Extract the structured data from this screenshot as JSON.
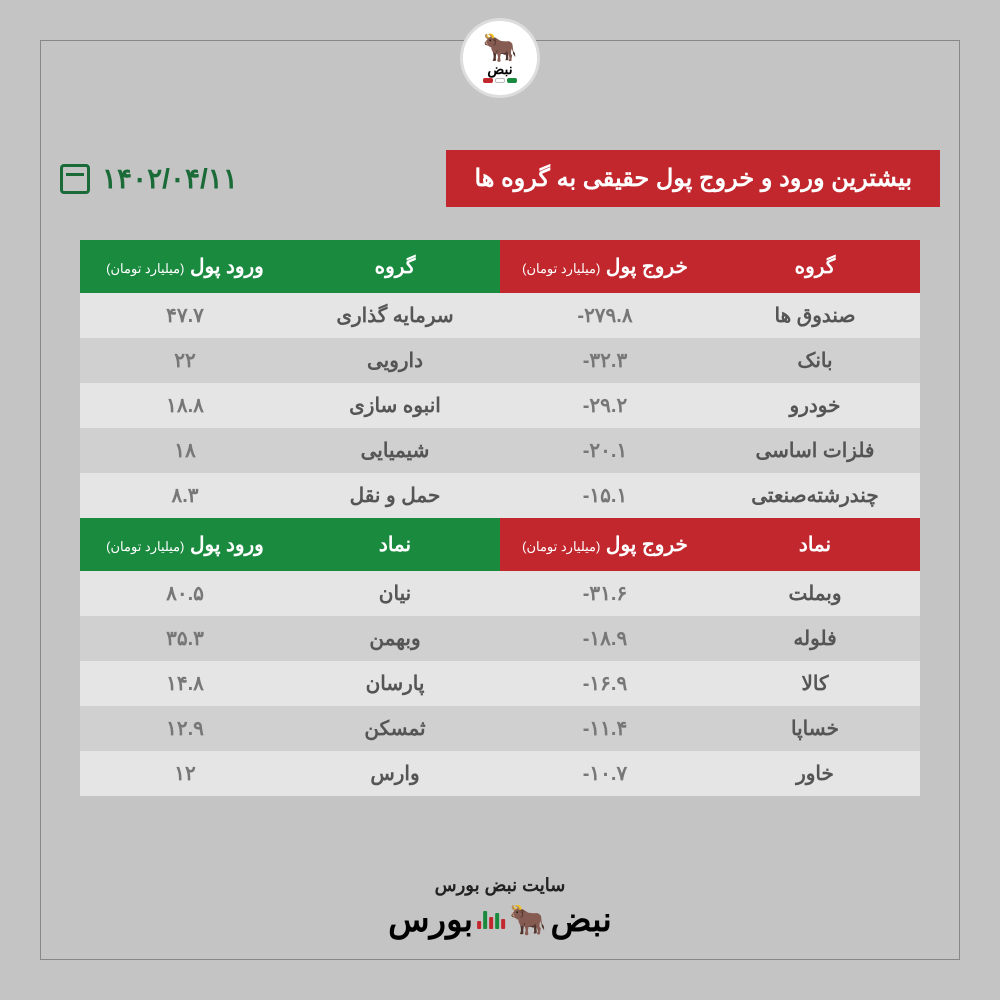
{
  "colors": {
    "red": "#c1272d",
    "green": "#1a8a3f",
    "bg": "#c4c4c4",
    "row_odd": "#e5e5e5",
    "row_even": "#d0d0d0",
    "name_text": "#555555",
    "value_text": "#777777"
  },
  "logo": {
    "top_text": "نبض",
    "sub_text": "بورس"
  },
  "header": {
    "title": "بیشترین ورود و خروج پول حقیقی به گروه ها",
    "date": "۱۴۰۲/۰۴/۱۱"
  },
  "section1": {
    "outflow": {
      "col_name": "گروه",
      "col_value": "خروج پول",
      "col_unit": "(میلیارد تومان)",
      "rows": [
        {
          "name": "صندوق ها",
          "value": "-۲۷۹.۸"
        },
        {
          "name": "بانک",
          "value": "-۳۲.۳"
        },
        {
          "name": "خودرو",
          "value": "-۲۹.۲"
        },
        {
          "name": "فلزات اساسی",
          "value": "-۲۰.۱"
        },
        {
          "name": "چندرشته‌صنعتی",
          "value": "-۱۵.۱"
        }
      ]
    },
    "inflow": {
      "col_name": "گروه",
      "col_value": "ورود پول",
      "col_unit": "(میلیارد تومان)",
      "rows": [
        {
          "name": "سرمایه گذاری",
          "value": "۴۷.۷"
        },
        {
          "name": "دارویی",
          "value": "۲۲"
        },
        {
          "name": "انبوه سازی",
          "value": "۱۸.۸"
        },
        {
          "name": "شیمیایی",
          "value": "۱۸"
        },
        {
          "name": "حمل و نقل",
          "value": "۸.۳"
        }
      ]
    }
  },
  "section2": {
    "outflow": {
      "col_name": "نماد",
      "col_value": "خروج پول",
      "col_unit": "(میلیارد تومان)",
      "rows": [
        {
          "name": "وبملت",
          "value": "-۳۱.۶"
        },
        {
          "name": "فلوله",
          "value": "-۱۸.۹"
        },
        {
          "name": "کالا",
          "value": "-۱۶.۹"
        },
        {
          "name": "خساپا",
          "value": "-۱۱.۴"
        },
        {
          "name": "خاور",
          "value": "-۱۰.۷"
        }
      ]
    },
    "inflow": {
      "col_name": "نماد",
      "col_value": "ورود پول",
      "col_unit": "(میلیارد تومان)",
      "rows": [
        {
          "name": "نیان",
          "value": "۸۰.۵"
        },
        {
          "name": "وبهمن",
          "value": "۳۵.۳"
        },
        {
          "name": "پارسان",
          "value": "۱۴.۸"
        },
        {
          "name": "ثمسکن",
          "value": "۱۲.۹"
        },
        {
          "name": "وارس",
          "value": "۱۲"
        }
      ]
    }
  },
  "footer": {
    "site_label": "سایت نبض بورس",
    "brand_right": "نبض",
    "brand_left": "بورس"
  }
}
